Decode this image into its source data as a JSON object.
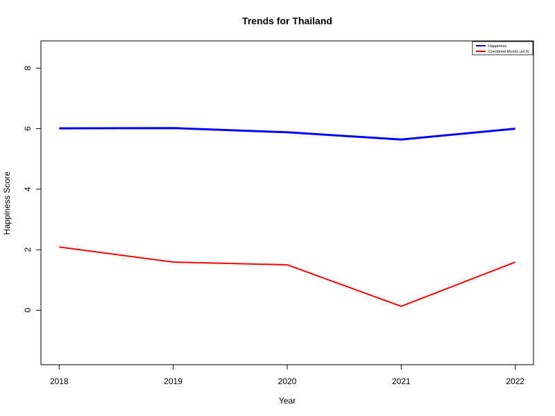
{
  "chart_data": {
    "type": "line",
    "title": "Trends for Thailand",
    "xlabel": "Year",
    "ylabel": "Happiness Score",
    "x": [
      2018,
      2019,
      2020,
      2021,
      2022
    ],
    "x_tick_labels": [
      "2018",
      "2019",
      "2020",
      "2021",
      "2022"
    ],
    "y_ticks": [
      0,
      2,
      4,
      6,
      8
    ],
    "y_tick_labels": [
      "0",
      "2",
      "4",
      "6",
      "8"
    ],
    "xlim": [
      2017.84,
      2022.16
    ],
    "ylim": [
      -1.8,
      8.9
    ],
    "grid": false,
    "legend_position": "top-right",
    "series": [
      {
        "name": "Happiness",
        "color": "#0000ff",
        "width": 3,
        "values": [
          6.01,
          6.02,
          5.88,
          5.64,
          6.0
        ]
      },
      {
        "name": "Combined Moods (all 3)",
        "color": "#ff0000",
        "width": 2,
        "values": [
          2.09,
          1.59,
          1.5,
          0.13,
          1.59
        ]
      }
    ]
  }
}
